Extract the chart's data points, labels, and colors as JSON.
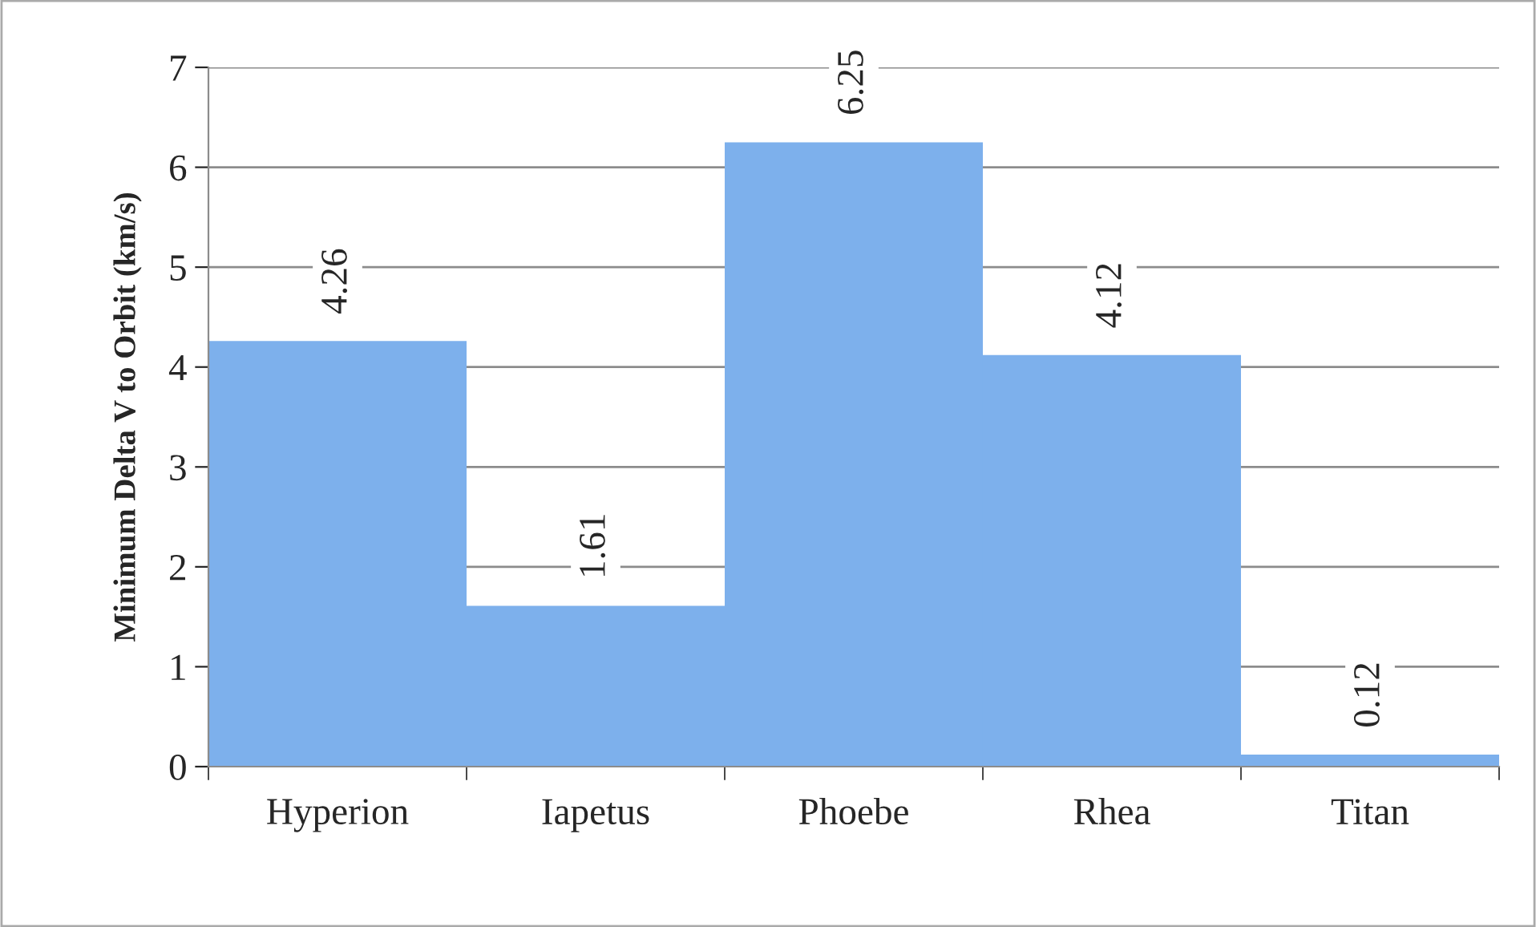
{
  "chart_data": {
    "type": "bar",
    "ylabel": "Minimum Delta V to Orbit (km/s)",
    "categories": [
      "Hyperion",
      "Iapetus",
      "Phoebe",
      "Rhea",
      "Titan"
    ],
    "values": [
      4.26,
      1.61,
      6.25,
      4.12,
      0.12
    ],
    "color": "#7db0ec",
    "ylim": [
      0,
      7
    ],
    "yticks": [
      0,
      1,
      2,
      3,
      4,
      5,
      6,
      7
    ],
    "grid": "y",
    "data_labels": true
  }
}
